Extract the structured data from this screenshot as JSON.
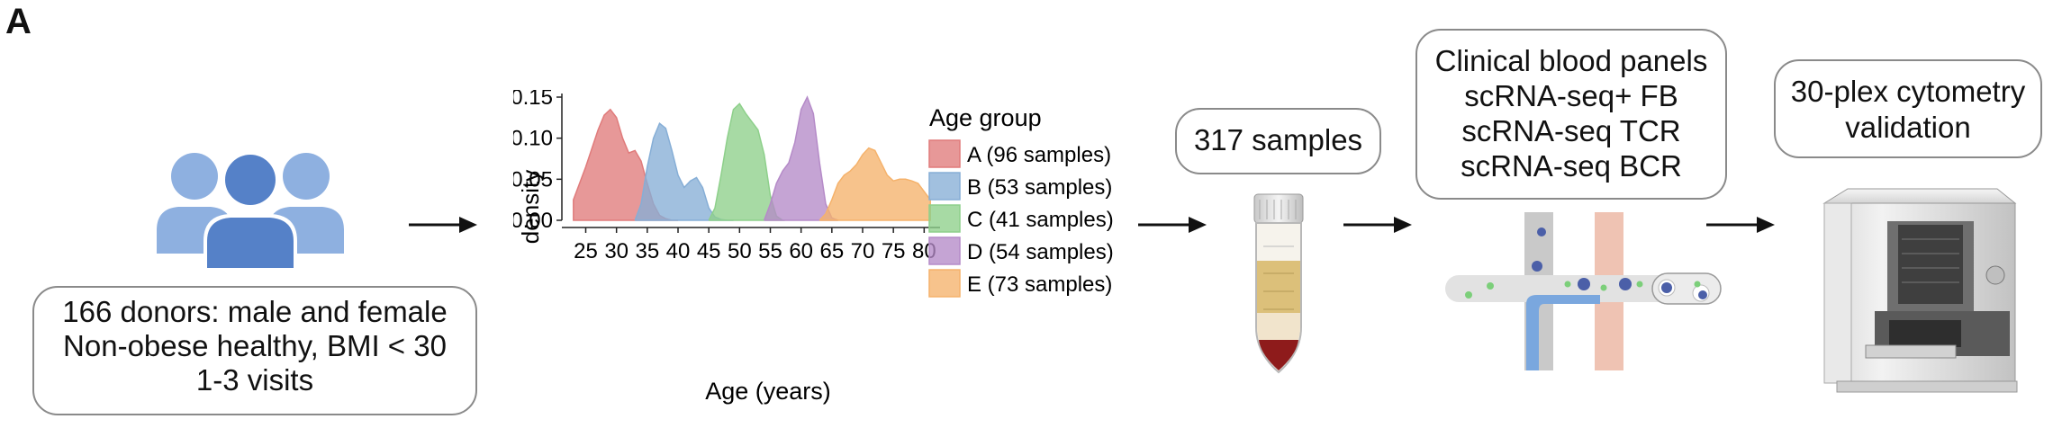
{
  "panel": {
    "letter": "A"
  },
  "donors": {
    "lines": [
      "166 donors: male and female",
      "Non-obese healthy, BMI < 30",
      "1-3 visits"
    ]
  },
  "samples": {
    "label": "317 samples"
  },
  "assays": {
    "lines": [
      "Clinical blood panels",
      "scRNA-seq+ FB",
      "scRNA-seq TCR",
      "scRNA-seq BCR"
    ]
  },
  "validation": {
    "lines": [
      "30-plex cytometry",
      "validation"
    ]
  },
  "icons": [
    "people-group-icon",
    "blood-tube-icon",
    "microfluidic-chip-icon",
    "cytometer-instrument-icon",
    "arrow-right-icon"
  ],
  "chart_data": {
    "type": "area",
    "xlabel": "Age (years)",
    "ylabel": "density",
    "xlim": [
      22,
      82
    ],
    "ylim": [
      0,
      0.15
    ],
    "xticks": [
      "25",
      "30",
      "35",
      "40",
      "45",
      "50",
      "55",
      "60",
      "65",
      "70",
      "75",
      "80"
    ],
    "yticks": [
      "0.00",
      "0.05",
      "0.10",
      "0.15"
    ],
    "legend_title": "Age group",
    "legend_position": "right",
    "series": [
      {
        "name": "A (96 samples)",
        "color": "#e07b7b",
        "x": [
          23,
          25,
          27,
          28,
          29,
          30,
          31,
          32,
          33,
          34,
          35,
          36,
          37,
          38,
          39,
          40
        ],
        "y": [
          0.025,
          0.065,
          0.11,
          0.128,
          0.135,
          0.125,
          0.1,
          0.082,
          0.085,
          0.072,
          0.045,
          0.02,
          0.006,
          0.002,
          0.0,
          0.0
        ]
      },
      {
        "name": "B (53 samples)",
        "color": "#86aed6",
        "x": [
          33,
          34,
          35,
          36,
          37,
          38,
          39,
          40,
          41,
          42,
          43,
          44,
          45,
          46,
          47,
          48,
          49
        ],
        "y": [
          0.0,
          0.02,
          0.065,
          0.1,
          0.118,
          0.112,
          0.085,
          0.055,
          0.04,
          0.048,
          0.052,
          0.04,
          0.015,
          0.004,
          0.001,
          0.0,
          0.0
        ]
      },
      {
        "name": "C (41 samples)",
        "color": "#8ed08b",
        "x": [
          45,
          46,
          47,
          48,
          49,
          50,
          51,
          52,
          53,
          54,
          55,
          56,
          57
        ],
        "y": [
          0.0,
          0.015,
          0.055,
          0.1,
          0.135,
          0.142,
          0.13,
          0.12,
          0.11,
          0.08,
          0.03,
          0.005,
          0.0
        ]
      },
      {
        "name": "D (54 samples)",
        "color": "#b58bc8",
        "x": [
          54,
          55,
          56,
          57,
          58,
          59,
          60,
          61,
          62,
          63,
          64,
          65,
          66
        ],
        "y": [
          0.0,
          0.02,
          0.045,
          0.06,
          0.07,
          0.095,
          0.135,
          0.15,
          0.13,
          0.07,
          0.02,
          0.003,
          0.0
        ]
      },
      {
        "name": "E (73 samples)",
        "color": "#f5b26b",
        "x": [
          63,
          64,
          65,
          66,
          67,
          68,
          69,
          70,
          71,
          72,
          73,
          74,
          75,
          76,
          77,
          78,
          79,
          80,
          81
        ],
        "y": [
          0.0,
          0.008,
          0.025,
          0.045,
          0.055,
          0.06,
          0.068,
          0.08,
          0.088,
          0.085,
          0.07,
          0.055,
          0.048,
          0.05,
          0.05,
          0.048,
          0.045,
          0.035,
          0.025
        ]
      }
    ]
  }
}
